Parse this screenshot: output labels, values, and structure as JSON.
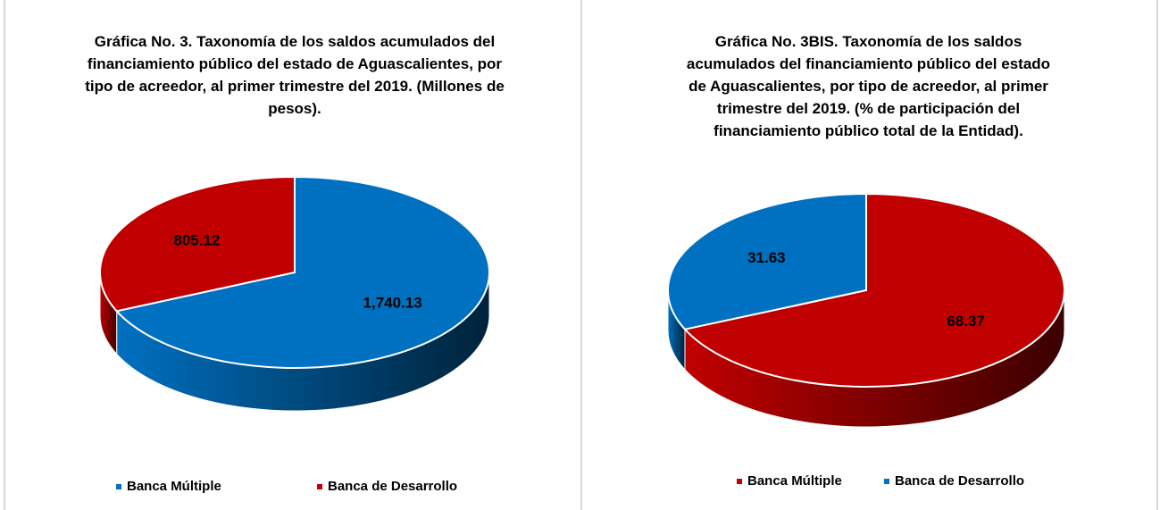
{
  "chart_data": [
    {
      "type": "pie3d",
      "title": "Gráfica No. 3. Taxonomía de los saldos acumulados del financiamiento público del estado de Aguascalientes, por tipo de acreedor, al primer trimestre del 2019. (Millones de pesos).",
      "categories": [
        "Banca Múltiple",
        "Banca de Desarrollo"
      ],
      "values": [
        1740.13,
        805.12
      ],
      "value_labels": [
        "1,740.13",
        "805.12"
      ],
      "colors": [
        "#0070c0",
        "#c00000"
      ],
      "legend": "bottom"
    },
    {
      "type": "pie3d",
      "title": "Gráfica No. 3BIS. Taxonomía de los saldos acumulados del financiamiento público del estado de Aguascalientes, por tipo de acreedor, al primer trimestre del 2019. (% de participación del financiamiento público total de la Entidad).",
      "categories": [
        "Banca Múltiple",
        "Banca de Desarrollo"
      ],
      "values": [
        68.37,
        31.63
      ],
      "colors": [
        "#c00000",
        "#0070c0"
      ],
      "legend": "bottom"
    }
  ]
}
